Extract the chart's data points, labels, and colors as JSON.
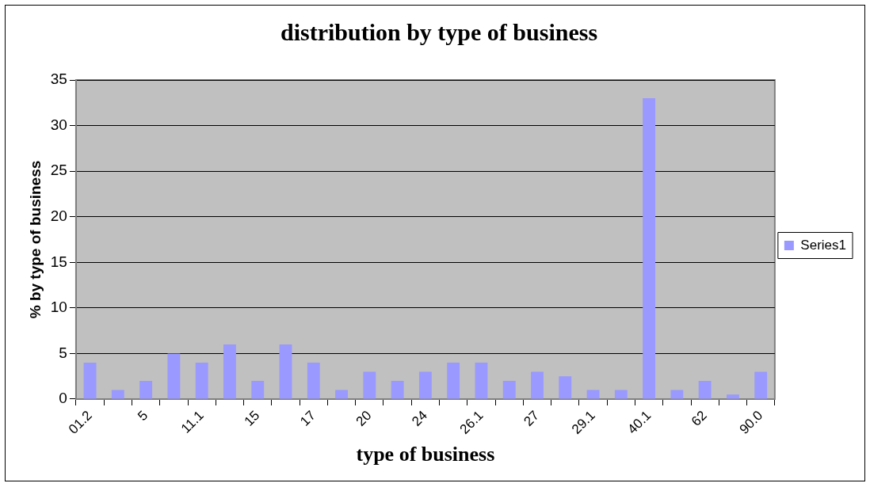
{
  "chart_data": {
    "type": "bar",
    "title": "distribution by type of business",
    "xlabel": "type of business",
    "ylabel": "% by type of business",
    "categories": [
      "01.2",
      null,
      "5",
      null,
      "11.1",
      null,
      "15",
      null,
      "17",
      null,
      "20",
      null,
      "24",
      null,
      "26.1",
      null,
      "27",
      null,
      "29.1",
      null,
      "40.1",
      null,
      "62",
      null,
      "90.0"
    ],
    "series": [
      {
        "name": "Series1",
        "color": "#9999ff",
        "values": [
          4,
          1,
          2,
          5,
          4,
          6,
          2,
          6,
          4,
          1,
          3,
          2,
          3,
          4,
          4,
          2,
          3,
          2.5,
          1,
          1,
          33,
          1,
          2,
          0.5,
          3
        ]
      }
    ],
    "ylim": [
      0,
      35
    ],
    "yticks": [
      0,
      5,
      10,
      15,
      20,
      25,
      30,
      35
    ],
    "grid": "y",
    "legend": "right"
  }
}
